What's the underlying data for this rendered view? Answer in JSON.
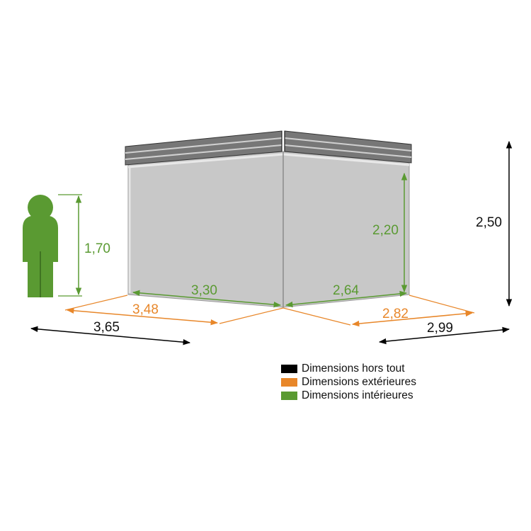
{
  "colors": {
    "overall": "#000000",
    "exterior": "#e8872a",
    "interior": "#5a9a32",
    "person": "#5a9a32",
    "wall": "#c8c8c8",
    "roof": "#6a6a6a"
  },
  "dimensions": {
    "overall_width": "3,65",
    "overall_depth": "2,99",
    "overall_height": "2,50",
    "exterior_width": "3,48",
    "exterior_depth": "2,82",
    "interior_width": "3,30",
    "interior_depth": "2,64",
    "interior_height": "2,20",
    "person_height": "1,70"
  },
  "legend": [
    {
      "label": "Dimensions hors tout",
      "color": "#000000"
    },
    {
      "label": "Dimensions extérieures",
      "color": "#e8872a"
    },
    {
      "label": "Dimensions intérieures",
      "color": "#5a9a32"
    }
  ]
}
